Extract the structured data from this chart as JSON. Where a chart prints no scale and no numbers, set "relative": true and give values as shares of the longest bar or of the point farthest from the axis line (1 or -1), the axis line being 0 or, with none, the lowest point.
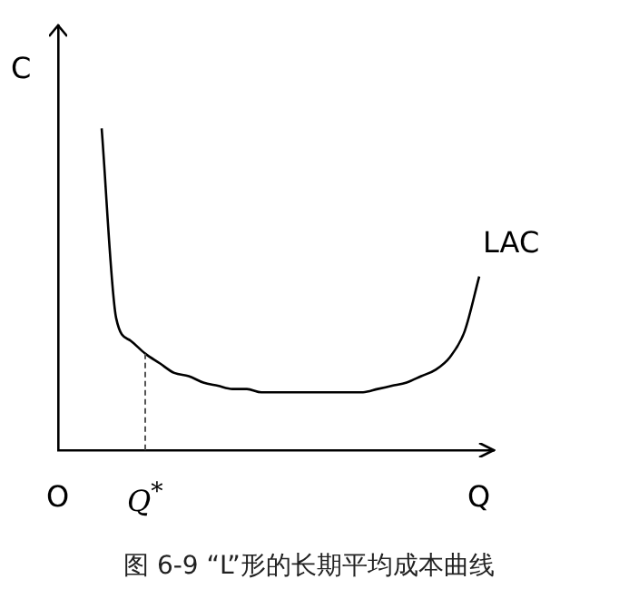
{
  "chart_data": {
    "type": "line",
    "relative": true,
    "title": "图 6-9 “L”形的长期平均成本曲线",
    "ylabel": "C",
    "tick_labels": "x",
    "categories": [
      "O",
      null,
      null,
      null,
      null,
      null,
      "Q$^{*}$",
      null,
      null,
      null,
      null,
      null,
      null,
      null,
      null,
      null,
      null,
      null,
      null,
      null,
      null,
      null,
      null,
      null,
      null,
      null,
      null,
      null,
      null,
      "Q",
      null
    ],
    "series": [
      {
        "name": "LAC",
        "color": "#000000",
        "values": [
          null,
          null,
          null,
          1.0,
          0.41,
          0.34,
          0.3,
          0.27,
          0.24,
          0.23,
          0.21,
          0.2,
          0.19,
          0.19,
          0.18,
          0.18,
          0.18,
          0.18,
          0.18,
          0.18,
          0.18,
          0.18,
          0.19,
          0.2,
          0.21,
          0.23,
          0.25,
          0.29,
          0.37,
          0.54,
          null
        ]
      }
    ],
    "ref_lines": [
      {
        "axis": "x",
        "value": "Q$^{*}$",
        "line_style": "dashed"
      }
    ]
  }
}
